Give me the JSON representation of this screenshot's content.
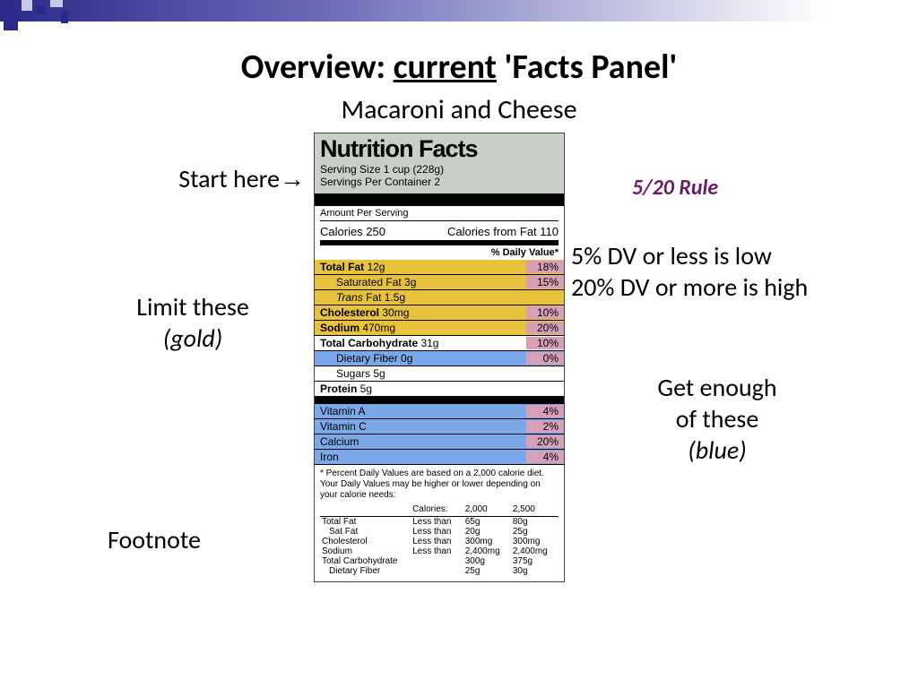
{
  "accent_colors": {
    "gradient_dark": "#2a2a8a",
    "gradient_light": "#6a6ab8",
    "gold": "#e8c23a",
    "blue": "#7aa8e8",
    "pink": "#d8a0b8",
    "header_bg": "#c8d0c8",
    "rule_color": "#6a1b6a"
  },
  "title": {
    "pre": "Overview: ",
    "underlined": "current",
    "post": " 'Facts Panel'"
  },
  "subtitle": "Macaroni and Cheese",
  "annotations": {
    "start": "Start here",
    "arrow": "→",
    "limit_l1": "Limit these",
    "limit_l2": "(gold)",
    "footnote": "Footnote",
    "rule_head": "5/20 Rule",
    "rule_l1": "5% DV or less is low",
    "rule_l2": "20% DV or more is high",
    "enough_l1": "Get enough",
    "enough_l2": "of these",
    "enough_l3": "(blue)"
  },
  "panel": {
    "title": "Nutrition Facts",
    "serving_size": "Serving Size 1 cup (228g)",
    "servings_per": "Servings Per Container 2",
    "aps": "Amount Per Serving",
    "calories_lbl": "Calories 250",
    "calories_fat": "Calories from Fat 110",
    "dv_head": "% Daily Value*",
    "rows": [
      {
        "bold": "Total Fat",
        "amt": " 12g",
        "dv": "18%",
        "cls": "gold pink"
      },
      {
        "indent": true,
        "bold": "",
        "lbl": "Saturated Fat 3g",
        "dv": "15%",
        "cls": "gold pink"
      },
      {
        "indent": true,
        "italic": "Trans",
        "lbl": " Fat 1.5g",
        "dv": "",
        "cls": "gold"
      },
      {
        "bold": "Cholesterol",
        "amt": " 30mg",
        "dv": "10%",
        "cls": "gold pink"
      },
      {
        "bold": "Sodium",
        "amt": " 470mg",
        "dv": "20%",
        "cls": "gold pink"
      },
      {
        "bold": "Total Carbohydrate",
        "amt": " 31g",
        "dv": "10%",
        "cls": "pink"
      },
      {
        "indent": true,
        "lbl": "Dietary Fiber 0g",
        "dv": "0%",
        "cls": "blue pink"
      },
      {
        "indent": true,
        "lbl": "Sugars 5g",
        "dv": "",
        "cls": ""
      },
      {
        "bold": "Protein",
        "amt": " 5g",
        "dv": "",
        "cls": ""
      }
    ],
    "vitamins": [
      {
        "lbl": "Vitamin A",
        "dv": "4%"
      },
      {
        "lbl": "Vitamin C",
        "dv": "2%"
      },
      {
        "lbl": "Calcium",
        "dv": "20%"
      },
      {
        "lbl": "Iron",
        "dv": "4%"
      }
    ],
    "footnote_text": "* Percent Daily Values are based on a 2,000 calorie diet. Your Daily Values may be higher or lower depending on your calorie needs:",
    "ft_head": {
      "c1": "",
      "c2": "Calories:",
      "c3": "2,000",
      "c4": "2,500"
    },
    "ft_rows": [
      {
        "c1": "Total Fat",
        "c2": "Less than",
        "c3": "65g",
        "c4": "80g"
      },
      {
        "c1": "  Sat Fat",
        "c2": "Less than",
        "c3": "20g",
        "c4": "25g"
      },
      {
        "c1": "Cholesterol",
        "c2": "Less than",
        "c3": "300mg",
        "c4": "300mg"
      },
      {
        "c1": "Sodium",
        "c2": "Less than",
        "c3": "2,400mg",
        "c4": "2,400mg"
      },
      {
        "c1": "Total Carbohydrate",
        "c2": "",
        "c3": "300g",
        "c4": "375g"
      },
      {
        "c1": "  Dietary Fiber",
        "c2": "",
        "c3": "25g",
        "c4": "30g"
      }
    ]
  }
}
